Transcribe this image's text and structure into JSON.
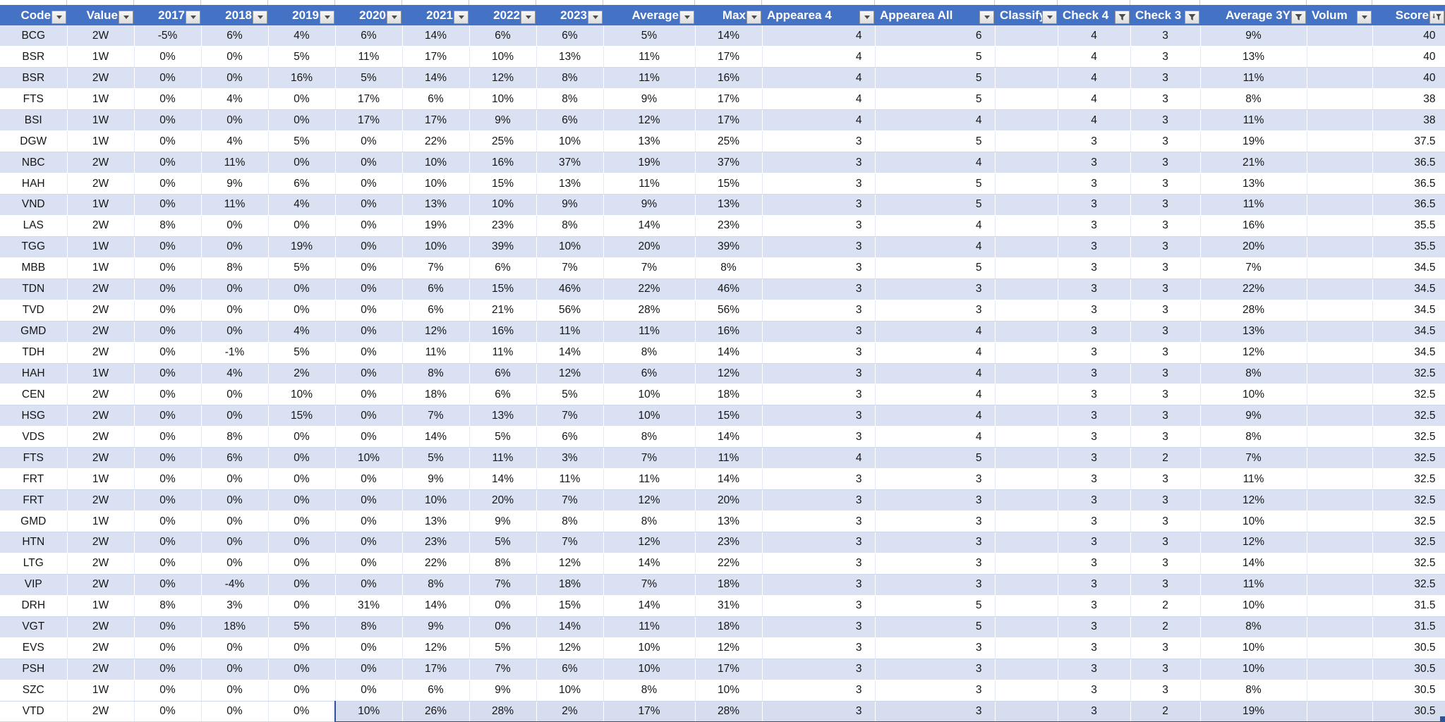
{
  "app": {
    "description": "Spreadsheet filtered table of stock codes with yearly percentages and scores"
  },
  "table": {
    "columns": [
      {
        "label": "Code",
        "filter_icon": "dropdown-arrow"
      },
      {
        "label": "Value",
        "filter_icon": "dropdown-arrow"
      },
      {
        "label": "2017",
        "filter_icon": "dropdown-arrow"
      },
      {
        "label": "2018",
        "filter_icon": "dropdown-arrow"
      },
      {
        "label": "2019",
        "filter_icon": "dropdown-arrow"
      },
      {
        "label": "2020",
        "filter_icon": "dropdown-arrow"
      },
      {
        "label": "2021",
        "filter_icon": "dropdown-arrow"
      },
      {
        "label": "2022",
        "filter_icon": "dropdown-arrow"
      },
      {
        "label": "2023",
        "filter_icon": "dropdown-arrow"
      },
      {
        "label": "Average",
        "filter_icon": "dropdown-arrow"
      },
      {
        "label": "Max",
        "filter_icon": "dropdown-arrow"
      },
      {
        "label": "Appearea 4",
        "filter_icon": "dropdown-arrow"
      },
      {
        "label": "Appearea All",
        "filter_icon": "dropdown-arrow"
      },
      {
        "label": "Classify",
        "filter_icon": "dropdown-arrow"
      },
      {
        "label": "Check 4",
        "filter_icon": "funnel"
      },
      {
        "label": "Check 3",
        "filter_icon": "funnel"
      },
      {
        "label": "Average 3Y",
        "filter_icon": "funnel"
      },
      {
        "label": "Volum",
        "filter_icon": "dropdown-arrow"
      },
      {
        "label": "Score",
        "filter_icon": "funnel-sort"
      }
    ],
    "rows": [
      [
        "BCG",
        "2W",
        "-5%",
        "6%",
        "4%",
        "6%",
        "14%",
        "6%",
        "6%",
        "5%",
        "14%",
        "4",
        "6",
        "",
        "4",
        "3",
        "9%",
        "",
        "40"
      ],
      [
        "BSR",
        "1W",
        "0%",
        "0%",
        "5%",
        "11%",
        "17%",
        "10%",
        "13%",
        "11%",
        "17%",
        "4",
        "5",
        "",
        "4",
        "3",
        "13%",
        "",
        "40"
      ],
      [
        "BSR",
        "2W",
        "0%",
        "0%",
        "16%",
        "5%",
        "14%",
        "12%",
        "8%",
        "11%",
        "16%",
        "4",
        "5",
        "",
        "4",
        "3",
        "11%",
        "",
        "40"
      ],
      [
        "FTS",
        "1W",
        "0%",
        "4%",
        "0%",
        "17%",
        "6%",
        "10%",
        "8%",
        "9%",
        "17%",
        "4",
        "5",
        "",
        "4",
        "3",
        "8%",
        "",
        "38"
      ],
      [
        "BSI",
        "1W",
        "0%",
        "0%",
        "0%",
        "17%",
        "17%",
        "9%",
        "6%",
        "12%",
        "17%",
        "4",
        "4",
        "",
        "4",
        "3",
        "11%",
        "",
        "38"
      ],
      [
        "DGW",
        "1W",
        "0%",
        "4%",
        "5%",
        "0%",
        "22%",
        "25%",
        "10%",
        "13%",
        "25%",
        "3",
        "5",
        "",
        "3",
        "3",
        "19%",
        "",
        "37.5"
      ],
      [
        "NBC",
        "2W",
        "0%",
        "11%",
        "0%",
        "0%",
        "10%",
        "16%",
        "37%",
        "19%",
        "37%",
        "3",
        "4",
        "",
        "3",
        "3",
        "21%",
        "",
        "36.5"
      ],
      [
        "HAH",
        "2W",
        "0%",
        "9%",
        "6%",
        "0%",
        "10%",
        "15%",
        "13%",
        "11%",
        "15%",
        "3",
        "5",
        "",
        "3",
        "3",
        "13%",
        "",
        "36.5"
      ],
      [
        "VND",
        "1W",
        "0%",
        "11%",
        "4%",
        "0%",
        "13%",
        "10%",
        "9%",
        "9%",
        "13%",
        "3",
        "5",
        "",
        "3",
        "3",
        "11%",
        "",
        "36.5"
      ],
      [
        "LAS",
        "2W",
        "8%",
        "0%",
        "0%",
        "0%",
        "19%",
        "23%",
        "8%",
        "14%",
        "23%",
        "3",
        "4",
        "",
        "3",
        "3",
        "16%",
        "",
        "35.5"
      ],
      [
        "TGG",
        "1W",
        "0%",
        "0%",
        "19%",
        "0%",
        "10%",
        "39%",
        "10%",
        "20%",
        "39%",
        "3",
        "4",
        "",
        "3",
        "3",
        "20%",
        "",
        "35.5"
      ],
      [
        "MBB",
        "1W",
        "0%",
        "8%",
        "5%",
        "0%",
        "7%",
        "6%",
        "7%",
        "7%",
        "8%",
        "3",
        "5",
        "",
        "3",
        "3",
        "7%",
        "",
        "34.5"
      ],
      [
        "TDN",
        "2W",
        "0%",
        "0%",
        "0%",
        "0%",
        "6%",
        "15%",
        "46%",
        "22%",
        "46%",
        "3",
        "3",
        "",
        "3",
        "3",
        "22%",
        "",
        "34.5"
      ],
      [
        "TVD",
        "2W",
        "0%",
        "0%",
        "0%",
        "0%",
        "6%",
        "21%",
        "56%",
        "28%",
        "56%",
        "3",
        "3",
        "",
        "3",
        "3",
        "28%",
        "",
        "34.5"
      ],
      [
        "GMD",
        "2W",
        "0%",
        "0%",
        "4%",
        "0%",
        "12%",
        "16%",
        "11%",
        "11%",
        "16%",
        "3",
        "4",
        "",
        "3",
        "3",
        "13%",
        "",
        "34.5"
      ],
      [
        "TDH",
        "2W",
        "0%",
        "-1%",
        "5%",
        "0%",
        "11%",
        "11%",
        "14%",
        "8%",
        "14%",
        "3",
        "4",
        "",
        "3",
        "3",
        "12%",
        "",
        "34.5"
      ],
      [
        "HAH",
        "1W",
        "0%",
        "4%",
        "2%",
        "0%",
        "8%",
        "6%",
        "12%",
        "6%",
        "12%",
        "3",
        "4",
        "",
        "3",
        "3",
        "8%",
        "",
        "32.5"
      ],
      [
        "CEN",
        "2W",
        "0%",
        "0%",
        "10%",
        "0%",
        "18%",
        "6%",
        "5%",
        "10%",
        "18%",
        "3",
        "4",
        "",
        "3",
        "3",
        "10%",
        "",
        "32.5"
      ],
      [
        "HSG",
        "2W",
        "0%",
        "0%",
        "15%",
        "0%",
        "7%",
        "13%",
        "7%",
        "10%",
        "15%",
        "3",
        "4",
        "",
        "3",
        "3",
        "9%",
        "",
        "32.5"
      ],
      [
        "VDS",
        "2W",
        "0%",
        "8%",
        "0%",
        "0%",
        "14%",
        "5%",
        "6%",
        "8%",
        "14%",
        "3",
        "4",
        "",
        "3",
        "3",
        "8%",
        "",
        "32.5"
      ],
      [
        "FTS",
        "2W",
        "0%",
        "6%",
        "0%",
        "10%",
        "5%",
        "11%",
        "3%",
        "7%",
        "11%",
        "4",
        "5",
        "",
        "3",
        "2",
        "7%",
        "",
        "32.5"
      ],
      [
        "FRT",
        "1W",
        "0%",
        "0%",
        "0%",
        "0%",
        "9%",
        "14%",
        "11%",
        "11%",
        "14%",
        "3",
        "3",
        "",
        "3",
        "3",
        "11%",
        "",
        "32.5"
      ],
      [
        "FRT",
        "2W",
        "0%",
        "0%",
        "0%",
        "0%",
        "10%",
        "20%",
        "7%",
        "12%",
        "20%",
        "3",
        "3",
        "",
        "3",
        "3",
        "12%",
        "",
        "32.5"
      ],
      [
        "GMD",
        "1W",
        "0%",
        "0%",
        "0%",
        "0%",
        "13%",
        "9%",
        "8%",
        "8%",
        "13%",
        "3",
        "3",
        "",
        "3",
        "3",
        "10%",
        "",
        "32.5"
      ],
      [
        "HTN",
        "2W",
        "0%",
        "0%",
        "0%",
        "0%",
        "23%",
        "5%",
        "7%",
        "12%",
        "23%",
        "3",
        "3",
        "",
        "3",
        "3",
        "12%",
        "",
        "32.5"
      ],
      [
        "LTG",
        "2W",
        "0%",
        "0%",
        "0%",
        "0%",
        "22%",
        "8%",
        "12%",
        "14%",
        "22%",
        "3",
        "3",
        "",
        "3",
        "3",
        "14%",
        "",
        "32.5"
      ],
      [
        "VIP",
        "2W",
        "0%",
        "-4%",
        "0%",
        "0%",
        "8%",
        "7%",
        "18%",
        "7%",
        "18%",
        "3",
        "3",
        "",
        "3",
        "3",
        "11%",
        "",
        "32.5"
      ],
      [
        "DRH",
        "1W",
        "8%",
        "3%",
        "0%",
        "31%",
        "14%",
        "0%",
        "15%",
        "14%",
        "31%",
        "3",
        "5",
        "",
        "3",
        "2",
        "10%",
        "",
        "31.5"
      ],
      [
        "VGT",
        "2W",
        "0%",
        "18%",
        "5%",
        "8%",
        "9%",
        "0%",
        "14%",
        "11%",
        "18%",
        "3",
        "5",
        "",
        "3",
        "2",
        "8%",
        "",
        "31.5"
      ],
      [
        "EVS",
        "2W",
        "0%",
        "0%",
        "0%",
        "0%",
        "12%",
        "5%",
        "12%",
        "10%",
        "12%",
        "3",
        "3",
        "",
        "3",
        "3",
        "10%",
        "",
        "30.5"
      ],
      [
        "PSH",
        "2W",
        "0%",
        "0%",
        "0%",
        "0%",
        "17%",
        "7%",
        "6%",
        "10%",
        "17%",
        "3",
        "3",
        "",
        "3",
        "3",
        "10%",
        "",
        "30.5"
      ],
      [
        "SZC",
        "1W",
        "0%",
        "0%",
        "0%",
        "0%",
        "6%",
        "9%",
        "10%",
        "8%",
        "10%",
        "3",
        "3",
        "",
        "3",
        "3",
        "8%",
        "",
        "30.5"
      ],
      [
        "VTD",
        "2W",
        "0%",
        "0%",
        "0%",
        "10%",
        "26%",
        "28%",
        "2%",
        "17%",
        "28%",
        "3",
        "3",
        "",
        "3",
        "2",
        "19%",
        "",
        "30.5"
      ]
    ],
    "selection": {
      "row_code": "VTD",
      "from_column": "2020",
      "to_column": "Score"
    },
    "colors": {
      "header_bg": "#4472c4",
      "header_text": "#ffffff",
      "band_bg": "#d9e1f2",
      "selection_bg": "#d5ddee",
      "selection_border": "#2f5496"
    }
  }
}
